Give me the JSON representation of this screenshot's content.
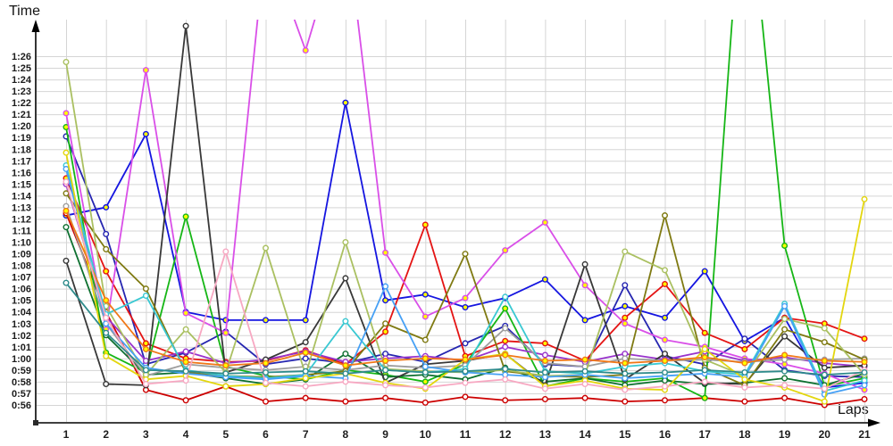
{
  "chart_data": {
    "type": "line",
    "title": "",
    "x_label": "Laps",
    "y_label": "Time",
    "x_ticks": [
      "1",
      "2",
      "3",
      "4",
      "5",
      "6",
      "7",
      "8",
      "9",
      "10",
      "11",
      "12",
      "13",
      "14",
      "15",
      "16",
      "17",
      "18",
      "19",
      "20",
      "21"
    ],
    "y_ticks": [
      "1:26",
      "1:25",
      "1:24",
      "1:23",
      "1:22",
      "1:21",
      "1:20",
      "1:19",
      "1:18",
      "1:17",
      "1:16",
      "1:15",
      "1:14",
      "1:13",
      "1:12",
      "1:11",
      "1:10",
      "1:09",
      "1:08",
      "1:07",
      "1:06",
      "1:05",
      "1:04",
      "1:03",
      "1:02",
      "1:01",
      "1:00",
      "0:59",
      "0:58",
      "0:57",
      "0:56"
    ],
    "y_axis_seconds_range": [
      56,
      86
    ],
    "x_axis_range": [
      1,
      21
    ],
    "grid": true,
    "legend_position": "none",
    "axis_color": "#000000",
    "grid_color": "#d5d5d5",
    "series": [
      {
        "name": "blue",
        "color": "#1515e0",
        "marker_fill": "#ffff00",
        "values_sec": [
          72.3,
          73.0,
          79.3,
          64.0,
          63.3,
          63.3,
          63.3,
          82.0,
          65.0,
          65.5,
          64.4,
          65.2,
          66.8,
          63.3,
          64.5,
          63.5,
          67.5,
          61.5,
          63.5,
          57.5,
          57.9
        ]
      },
      {
        "name": "navy",
        "color": "#2626b0",
        "marker_fill": "#ffffff",
        "values_sec": [
          79.1,
          70.7,
          59.5,
          60.5,
          62.3,
          59.5,
          60.0,
          59.6,
          60.4,
          59.7,
          61.3,
          62.8,
          59.5,
          59.3,
          66.3,
          60.2,
          59.5,
          61.7,
          59.0,
          58.5,
          58.4
        ]
      },
      {
        "name": "red",
        "color": "#e41414",
        "marker_fill": "#ffff00",
        "values_sec": [
          75.5,
          67.5,
          61.3,
          60.0,
          59.7,
          59.8,
          60.7,
          59.5,
          62.3,
          71.5,
          60.2,
          61.5,
          61.3,
          59.8,
          63.5,
          66.4,
          62.2,
          60.8,
          63.5,
          63.0,
          61.7
        ]
      },
      {
        "name": "darkred",
        "color": "#cc0000",
        "marker_fill": "#ffffff",
        "values_sec": [
          72.5,
          64.0,
          57.3,
          56.4,
          57.6,
          56.3,
          56.6,
          56.3,
          56.6,
          56.2,
          56.7,
          56.4,
          56.5,
          56.6,
          56.3,
          56.4,
          56.6,
          56.3,
          56.6,
          56.0,
          56.5
        ]
      },
      {
        "name": "green",
        "color": "#16b616",
        "marker_fill": "#ffff00",
        "values_sec": [
          79.9,
          60.5,
          58.8,
          72.2,
          59.3,
          58.5,
          58.2,
          59.0,
          58.6,
          58.0,
          59.5,
          64.3,
          57.6,
          58.3,
          58.0,
          58.3,
          56.6,
          104.0,
          69.7,
          57.6,
          58.3
        ]
      },
      {
        "name": "darkgreen",
        "color": "#0e7030",
        "marker_fill": "#ffffff",
        "values_sec": [
          71.3,
          62.0,
          58.6,
          58.8,
          58.3,
          57.8,
          58.2,
          60.4,
          58.4,
          58.6,
          58.2,
          59.2,
          58.0,
          58.3,
          57.7,
          58.1,
          57.8,
          57.9,
          58.3,
          57.7,
          58.7
        ]
      },
      {
        "name": "magenta",
        "color": "#d94fe8",
        "marker_fill": "#ffff00",
        "values_sec": [
          81.1,
          62.5,
          84.8,
          63.9,
          62.2,
          96.0,
          86.5,
          98.0,
          69.1,
          63.6,
          65.2,
          69.3,
          71.7,
          66.3,
          63.0,
          61.6,
          61.0,
          60.0,
          59.5,
          58.7,
          57.3
        ]
      },
      {
        "name": "purple",
        "color": "#9933cc",
        "marker_fill": "#ffffff",
        "values_sec": [
          75.0,
          63.6,
          59.8,
          60.6,
          59.6,
          59.9,
          60.6,
          59.7,
          60.0,
          60.2,
          59.8,
          61.0,
          60.3,
          59.7,
          60.4,
          59.9,
          60.6,
          59.8,
          60.1,
          59.6,
          59.3
        ]
      },
      {
        "name": "black",
        "color": "#383838",
        "marker_fill": "#ffffff",
        "values_sec": [
          68.4,
          57.8,
          57.7,
          88.6,
          58.8,
          59.9,
          61.4,
          66.9,
          57.9,
          59.5,
          59.8,
          60.4,
          57.7,
          68.1,
          58.2,
          60.4,
          57.9,
          57.8,
          61.9,
          59.2,
          59.4
        ]
      },
      {
        "name": "gray",
        "color": "#9e9e9e",
        "marker_fill": "#ffffff",
        "values_sec": [
          73.1,
          63.0,
          58.5,
          59.5,
          59.2,
          59.0,
          59.3,
          59.0,
          59.4,
          59.2,
          59.4,
          62.6,
          59.6,
          59.3,
          60.0,
          59.8,
          59.9,
          59.7,
          59.9,
          59.9,
          60.0
        ]
      },
      {
        "name": "darkolive",
        "color": "#7f7a12",
        "marker_fill": "#ffffff",
        "values_sec": [
          74.2,
          69.4,
          66.0,
          58.8,
          58.5,
          58.4,
          58.6,
          58.9,
          63.0,
          61.6,
          69.0,
          58.9,
          58.5,
          58.4,
          58.6,
          72.3,
          59.2,
          57.7,
          62.5,
          61.4,
          59.9
        ]
      },
      {
        "name": "paleolive",
        "color": "#aac061",
        "marker_fill": "#ffffff",
        "values_sec": [
          85.5,
          64.5,
          58.6,
          62.5,
          58.8,
          69.5,
          58.6,
          70.0,
          59.1,
          58.9,
          58.8,
          59.0,
          58.5,
          58.6,
          69.2,
          67.6,
          59.9,
          58.5,
          63.4,
          62.6,
          58.6
        ]
      },
      {
        "name": "cyan",
        "color": "#39c8d2",
        "marker_fill": "#ffffff",
        "values_sec": [
          76.6,
          63.8,
          65.4,
          59.0,
          58.5,
          58.3,
          58.6,
          63.2,
          59.0,
          58.8,
          59.1,
          65.3,
          58.9,
          58.7,
          59.3,
          59.6,
          58.9,
          58.6,
          64.7,
          57.2,
          58.1
        ]
      },
      {
        "name": "skyblue",
        "color": "#46a0f5",
        "marker_fill": "#ffffff",
        "values_sec": [
          76.3,
          63.0,
          59.2,
          58.7,
          58.4,
          58.2,
          58.5,
          58.3,
          66.2,
          59.3,
          58.8,
          58.6,
          58.4,
          58.6,
          58.3,
          58.5,
          58.7,
          58.4,
          64.5,
          56.9,
          57.7
        ]
      },
      {
        "name": "yellow",
        "color": "#e3d60e",
        "marker_fill": "#ffffff",
        "values_sec": [
          77.7,
          60.2,
          58.2,
          58.5,
          57.6,
          57.8,
          58.3,
          58.7,
          57.9,
          57.4,
          59.9,
          60.4,
          57.6,
          58.1,
          57.4,
          57.3,
          60.8,
          58.2,
          57.5,
          56.3,
          73.7
        ]
      },
      {
        "name": "orange",
        "color": "#f07818",
        "marker_fill": "#ffff00",
        "values_sec": [
          72.7,
          65.0,
          60.8,
          59.7,
          59.4,
          59.6,
          60.5,
          59.4,
          59.8,
          60.0,
          59.9,
          60.3,
          59.8,
          59.9,
          59.6,
          59.8,
          60.1,
          59.6,
          60.3,
          59.8,
          59.7
        ]
      },
      {
        "name": "pink",
        "color": "#f7a8c2",
        "marker_fill": "#ffffff",
        "values_sec": [
          75.2,
          63.5,
          57.8,
          58.1,
          69.2,
          57.9,
          57.6,
          58.0,
          57.7,
          57.5,
          57.9,
          58.2,
          57.4,
          57.8,
          57.3,
          57.6,
          58.0,
          57.5,
          57.7,
          57.4,
          59.0
        ]
      },
      {
        "name": "teal",
        "color": "#2e8b8b",
        "marker_fill": "#ffffff",
        "values_sec": [
          66.5,
          62.2,
          59.0,
          58.9,
          58.7,
          58.8,
          58.9,
          58.7,
          59.0,
          58.8,
          58.9,
          59.1,
          58.8,
          58.9,
          58.7,
          58.8,
          59.0,
          58.8,
          58.9,
          58.6,
          58.8
        ]
      }
    ]
  }
}
